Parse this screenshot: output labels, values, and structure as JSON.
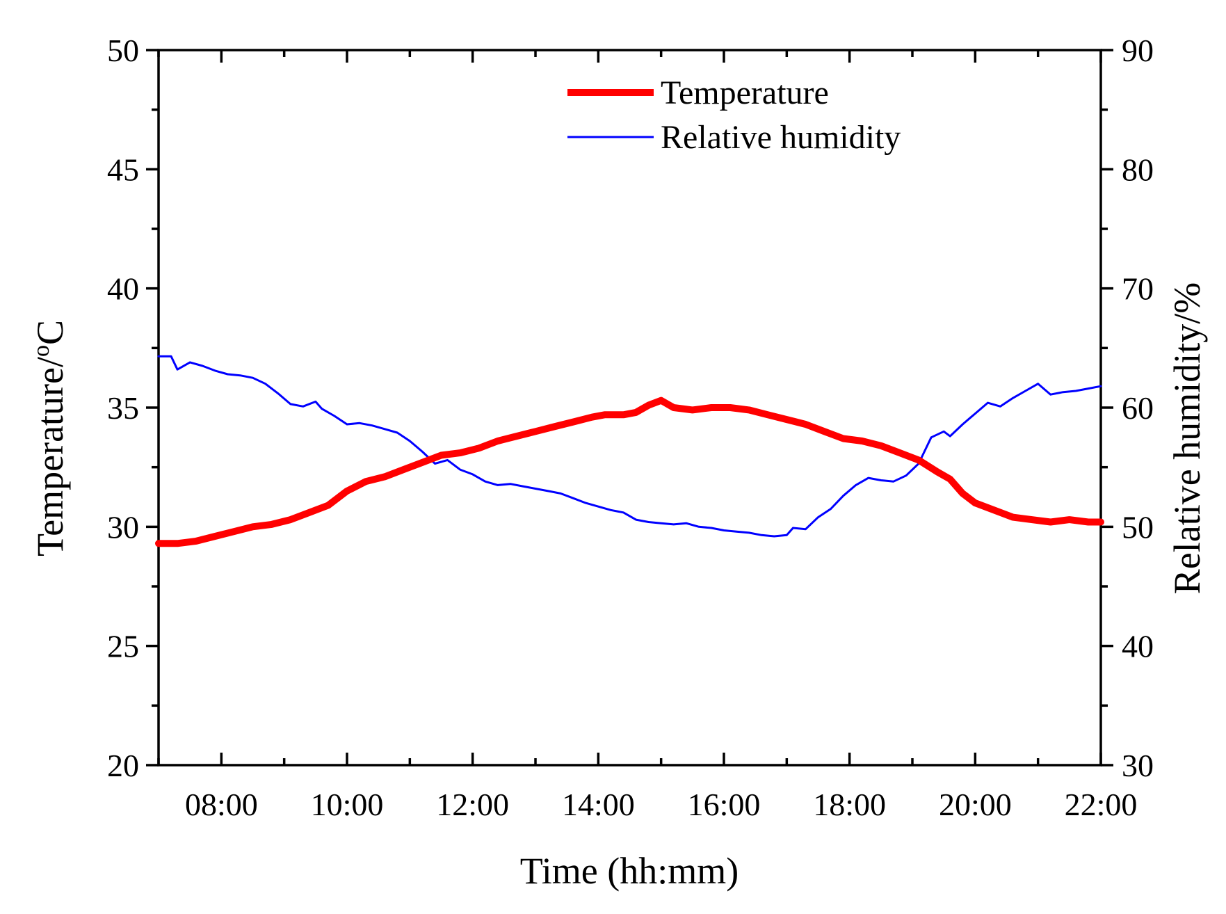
{
  "chart_data": {
    "type": "line",
    "title": "",
    "xlabel": "Time (hh:mm)",
    "ylabel_left": "Temperature/",
    "ylabel_left_unit_sup": "o",
    "ylabel_left_unit": "C",
    "ylabel_right": "Relative humidity/%",
    "xlim": [
      7.0,
      22.0
    ],
    "ylim_left": [
      20,
      50
    ],
    "ylim_right": [
      30,
      90
    ],
    "x_ticks": [
      8,
      10,
      12,
      14,
      16,
      18,
      20,
      22
    ],
    "x_tick_labels": [
      "08:00",
      "10:00",
      "12:00",
      "14:00",
      "16:00",
      "18:00",
      "20:00",
      "22:00"
    ],
    "y_left_ticks": [
      20,
      25,
      30,
      35,
      40,
      45,
      50
    ],
    "y_left_tick_labels": [
      "20",
      "25",
      "30",
      "35",
      "40",
      "45",
      "50"
    ],
    "y_right_ticks": [
      30,
      40,
      50,
      60,
      70,
      80,
      90
    ],
    "y_right_tick_labels": [
      "30",
      "40",
      "50",
      "60",
      "70",
      "80",
      "90"
    ],
    "grid": false,
    "legend_position": "top-center",
    "series": [
      {
        "name": "Temperature",
        "axis": "left",
        "color": "#ff0000",
        "x": [
          7.0,
          7.3,
          7.6,
          7.9,
          8.2,
          8.5,
          8.8,
          9.1,
          9.4,
          9.7,
          10.0,
          10.3,
          10.6,
          10.9,
          11.2,
          11.5,
          11.8,
          12.1,
          12.4,
          12.7,
          13.0,
          13.3,
          13.6,
          13.9,
          14.1,
          14.4,
          14.6,
          14.8,
          15.0,
          15.2,
          15.5,
          15.8,
          16.1,
          16.4,
          16.7,
          17.0,
          17.3,
          17.6,
          17.9,
          18.2,
          18.5,
          18.8,
          19.1,
          19.4,
          19.6,
          19.8,
          20.0,
          20.3,
          20.6,
          20.9,
          21.2,
          21.5,
          21.8,
          22.0
        ],
        "values": [
          29.3,
          29.3,
          29.4,
          29.6,
          29.8,
          30.0,
          30.1,
          30.3,
          30.6,
          30.9,
          31.5,
          31.9,
          32.1,
          32.4,
          32.7,
          33.0,
          33.1,
          33.3,
          33.6,
          33.8,
          34.0,
          34.2,
          34.4,
          34.6,
          34.7,
          34.7,
          34.8,
          35.1,
          35.3,
          35.0,
          34.9,
          35.0,
          35.0,
          34.9,
          34.7,
          34.5,
          34.3,
          34.0,
          33.7,
          33.6,
          33.4,
          33.1,
          32.8,
          32.3,
          32.0,
          31.4,
          31.0,
          30.7,
          30.4,
          30.3,
          30.2,
          30.3,
          30.2,
          30.2
        ]
      },
      {
        "name": "Relative humidity",
        "axis": "right",
        "color": "#0000ff",
        "x": [
          7.0,
          7.2,
          7.3,
          7.5,
          7.7,
          7.9,
          8.1,
          8.3,
          8.5,
          8.7,
          8.9,
          9.1,
          9.3,
          9.5,
          9.6,
          9.8,
          10.0,
          10.2,
          10.4,
          10.6,
          10.8,
          11.0,
          11.2,
          11.4,
          11.6,
          11.8,
          12.0,
          12.2,
          12.4,
          12.6,
          12.8,
          13.0,
          13.2,
          13.4,
          13.6,
          13.8,
          14.0,
          14.2,
          14.4,
          14.6,
          14.8,
          15.0,
          15.2,
          15.4,
          15.6,
          15.8,
          16.0,
          16.2,
          16.4,
          16.6,
          16.8,
          17.0,
          17.1,
          17.3,
          17.5,
          17.7,
          17.9,
          18.1,
          18.3,
          18.5,
          18.7,
          18.9,
          19.1,
          19.3,
          19.5,
          19.6,
          19.8,
          20.0,
          20.2,
          20.4,
          20.6,
          20.8,
          21.0,
          21.2,
          21.4,
          21.6,
          21.8,
          22.0
        ],
        "values": [
          64.3,
          64.3,
          63.2,
          63.8,
          63.5,
          63.1,
          62.8,
          62.7,
          62.5,
          62.0,
          61.2,
          60.3,
          60.1,
          60.5,
          59.9,
          59.3,
          58.6,
          58.7,
          58.5,
          58.2,
          57.9,
          57.2,
          56.3,
          55.3,
          55.6,
          54.8,
          54.4,
          53.8,
          53.5,
          53.6,
          53.4,
          53.2,
          53.0,
          52.8,
          52.4,
          52.0,
          51.7,
          51.4,
          51.2,
          50.6,
          50.4,
          50.3,
          50.2,
          50.3,
          50.0,
          49.9,
          49.7,
          49.6,
          49.5,
          49.3,
          49.2,
          49.3,
          49.9,
          49.8,
          50.8,
          51.5,
          52.6,
          53.5,
          54.1,
          53.9,
          53.8,
          54.3,
          55.3,
          57.5,
          58.0,
          57.6,
          58.6,
          59.5,
          60.4,
          60.1,
          60.8,
          61.4,
          62.0,
          61.1,
          61.3,
          61.4,
          61.6,
          61.8
        ]
      }
    ]
  }
}
